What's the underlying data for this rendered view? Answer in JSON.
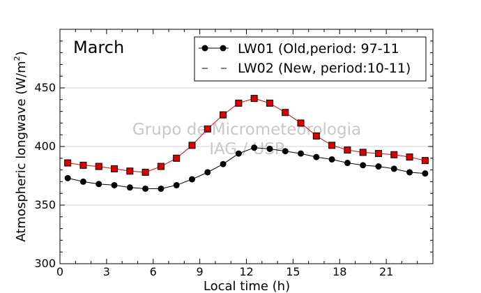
{
  "chart_data": {
    "type": "line",
    "title": "March",
    "xlabel": "Local time (h)",
    "ylabel_main": "Atmospheric longwave (W/m",
    "ylabel_sup": "2",
    "ylabel_tail": ")",
    "xlim": [
      0,
      24
    ],
    "ylim": [
      300,
      500
    ],
    "xticks": [
      0,
      3,
      6,
      9,
      12,
      15,
      18,
      21
    ],
    "yticks": [
      300,
      350,
      400,
      450
    ],
    "grid": "horizontal",
    "legend_position": "top-right",
    "watermark": [
      "Grupo de Micrometeorologia",
      "IAG / USP"
    ],
    "x": [
      0.5,
      1.5,
      2.5,
      3.5,
      4.5,
      5.5,
      6.5,
      7.5,
      8.5,
      9.5,
      10.5,
      11.5,
      12.5,
      13.5,
      14.5,
      15.5,
      16.5,
      17.5,
      18.5,
      19.5,
      20.5,
      21.5,
      22.5,
      23.5
    ],
    "series": [
      {
        "name": "LW01 (Old,period: 97-11",
        "color": "#000000",
        "marker": "circle",
        "line_style": "solid",
        "values": [
          373,
          370,
          368,
          367,
          365,
          364,
          364,
          367,
          372,
          378,
          385,
          394,
          399,
          398,
          396,
          394,
          391,
          389,
          386,
          384,
          383,
          381,
          378,
          377
        ]
      },
      {
        "name": "LW02 (New, period:10-11)",
        "color": "#dd0000",
        "marker": "square",
        "line_style": "dashed",
        "values": [
          386,
          384,
          383,
          381,
          379,
          378,
          383,
          390,
          401,
          415,
          427,
          437,
          441,
          437,
          429,
          420,
          409,
          401,
          397,
          395,
          394,
          393,
          391,
          388
        ]
      }
    ]
  }
}
